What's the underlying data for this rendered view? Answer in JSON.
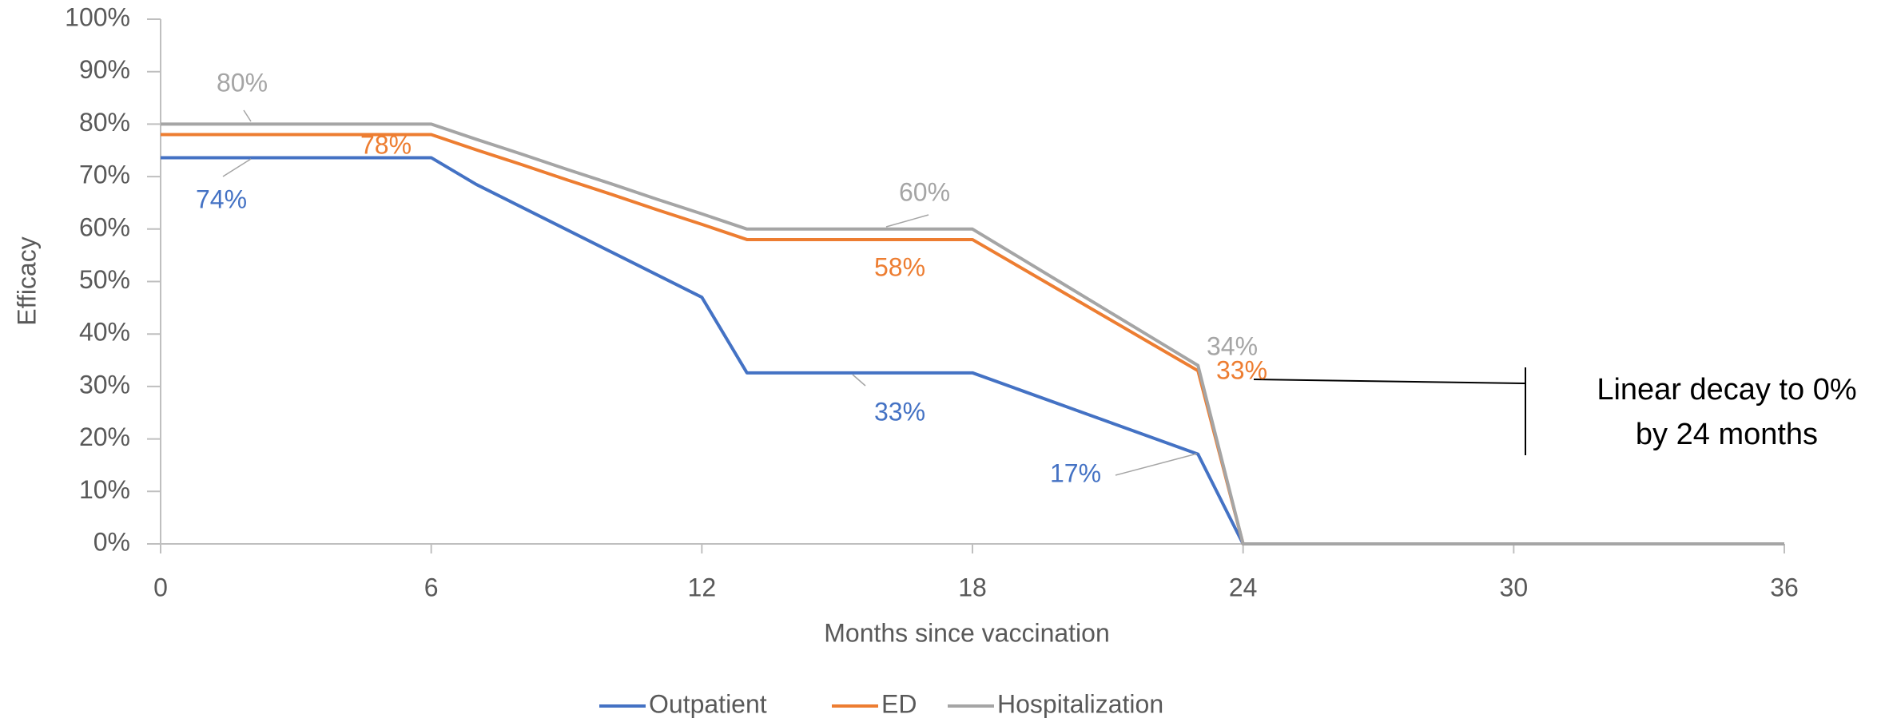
{
  "chart_data": {
    "type": "line",
    "xlabel": "Months since vaccination",
    "ylabel": "Efficacy",
    "x": [
      0,
      1,
      2,
      3,
      4,
      5,
      6,
      7,
      8,
      9,
      10,
      11,
      12,
      13,
      14,
      15,
      16,
      17,
      18,
      19,
      20,
      21,
      22,
      23,
      24,
      25,
      26,
      27,
      28,
      29,
      30,
      31,
      32,
      33,
      34,
      35,
      36
    ],
    "xlim": [
      0,
      36
    ],
    "xticks": [
      0,
      6,
      12,
      18,
      24,
      30,
      36
    ],
    "ylim": [
      0,
      100
    ],
    "yticks": [
      {
        "value": 0,
        "label": "0%"
      },
      {
        "value": 10,
        "label": "10%"
      },
      {
        "value": 20,
        "label": "20%"
      },
      {
        "value": 30,
        "label": "30%"
      },
      {
        "value": 40,
        "label": "40%"
      },
      {
        "value": 50,
        "label": "50%"
      },
      {
        "value": 60,
        "label": "60%"
      },
      {
        "value": 70,
        "label": "70%"
      },
      {
        "value": 80,
        "label": "80%"
      },
      {
        "value": 90,
        "label": "90%"
      },
      {
        "value": 100,
        "label": "100%"
      }
    ],
    "grid": false,
    "legend": "bottom",
    "series": [
      {
        "name": "Outpatient",
        "color": "#4472c4",
        "values": [
          73.6,
          73.6,
          73.6,
          73.6,
          73.6,
          73.6,
          73.6,
          68.5,
          64.2,
          59.9,
          55.6,
          51.3,
          47,
          32.6,
          32.6,
          32.6,
          32.6,
          32.6,
          32.6,
          29.5,
          26.4,
          23.3,
          20.2,
          17.1,
          0,
          0,
          0,
          0,
          0,
          0,
          0,
          0,
          0,
          0,
          0,
          0,
          0
        ],
        "value_labels": [
          null,
          null,
          "74%",
          null,
          null,
          null,
          null,
          null,
          null,
          null,
          null,
          null,
          null,
          null,
          null,
          "33%",
          null,
          null,
          null,
          null,
          null,
          null,
          null,
          "17%",
          null,
          null,
          null,
          null,
          null,
          null,
          null,
          null,
          null,
          null,
          null,
          null,
          null
        ]
      },
      {
        "name": "ED",
        "color": "#ed7d31",
        "values": [
          78,
          78,
          78,
          78,
          78,
          78,
          78,
          75.1,
          72.3,
          69.4,
          66.6,
          63.7,
          60.9,
          58,
          58,
          58,
          58,
          58,
          58,
          53,
          48,
          43,
          38,
          33,
          0,
          0,
          0,
          0,
          0,
          0,
          0,
          0,
          0,
          0,
          0,
          0,
          0
        ],
        "value_labels": [
          null,
          null,
          null,
          null,
          null,
          "78%",
          null,
          null,
          null,
          null,
          null,
          null,
          null,
          null,
          null,
          null,
          "58%",
          null,
          null,
          null,
          null,
          null,
          null,
          "33%",
          null,
          null,
          null,
          null,
          null,
          null,
          null,
          null,
          null,
          null,
          null,
          null,
          null
        ]
      },
      {
        "name": "Hospitalization",
        "color": "#a5a5a5",
        "values": [
          80,
          80,
          80,
          80,
          80,
          80,
          80,
          77.1,
          74.3,
          71.4,
          68.6,
          65.7,
          62.9,
          60,
          60,
          60,
          60,
          60,
          60,
          54.8,
          49.6,
          44.4,
          39.2,
          34,
          0,
          0,
          0,
          0,
          0,
          0,
          0,
          0,
          0,
          0,
          0,
          0,
          0
        ],
        "value_labels": [
          null,
          null,
          "80%",
          null,
          null,
          null,
          null,
          null,
          null,
          null,
          null,
          null,
          null,
          null,
          null,
          null,
          "60%",
          null,
          null,
          null,
          null,
          null,
          null,
          "34%",
          null,
          null,
          null,
          null,
          null,
          null,
          null,
          null,
          null,
          null,
          null,
          null,
          null
        ]
      }
    ],
    "annotations": [
      {
        "lines": [
          "Linear decay to 0%",
          "by 24 months"
        ]
      }
    ]
  }
}
